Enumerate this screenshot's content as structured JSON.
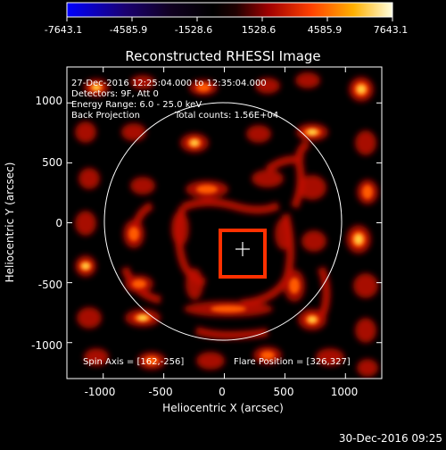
{
  "colorbar": {
    "tick_labels": [
      "-7643.1",
      "-4585.9",
      "-1528.6",
      "1528.6",
      "4585.9",
      "7643.1"
    ],
    "min": -7643.1,
    "max": 7643.1
  },
  "title": "Reconstructed RHESSI Image",
  "info": {
    "time_range": "27-Dec-2016 12:25:04.000 to 12:35:04.000",
    "detectors": "Detectors: 9F, Att 0",
    "energy_range": "Energy Range: 6.0 - 25.0 keV",
    "algorithm": "Back Projection",
    "total_counts": "Total counts: 1.56E+04",
    "spin_axis": "Spin Axis = [162,-256]",
    "flare_position": "Flare Position = [326,327]"
  },
  "axes": {
    "xlabel": "Heliocentric X (arcsec)",
    "ylabel": "Heliocentric Y (arcsec)",
    "x_ticks": [
      "-1000",
      "-500",
      "0",
      "500",
      "1000"
    ],
    "y_ticks": [
      "1000",
      "500",
      "0",
      "-500",
      "-1000"
    ],
    "x_tick_values": [
      -1000,
      -500,
      0,
      500,
      1000
    ],
    "y_tick_values": [
      1000,
      500,
      0,
      -500,
      -1000
    ],
    "xlim": [
      -1300,
      1300
    ],
    "ylim": [
      -1300,
      1300
    ]
  },
  "footer_timestamp": "30-Dec-2016 09:25",
  "colors": {
    "background": "#000000",
    "foreground": "#ffffff",
    "heat_low": "#8a0000",
    "heat_mid": "#ff3a00",
    "heat_high": "#ffe060"
  }
}
